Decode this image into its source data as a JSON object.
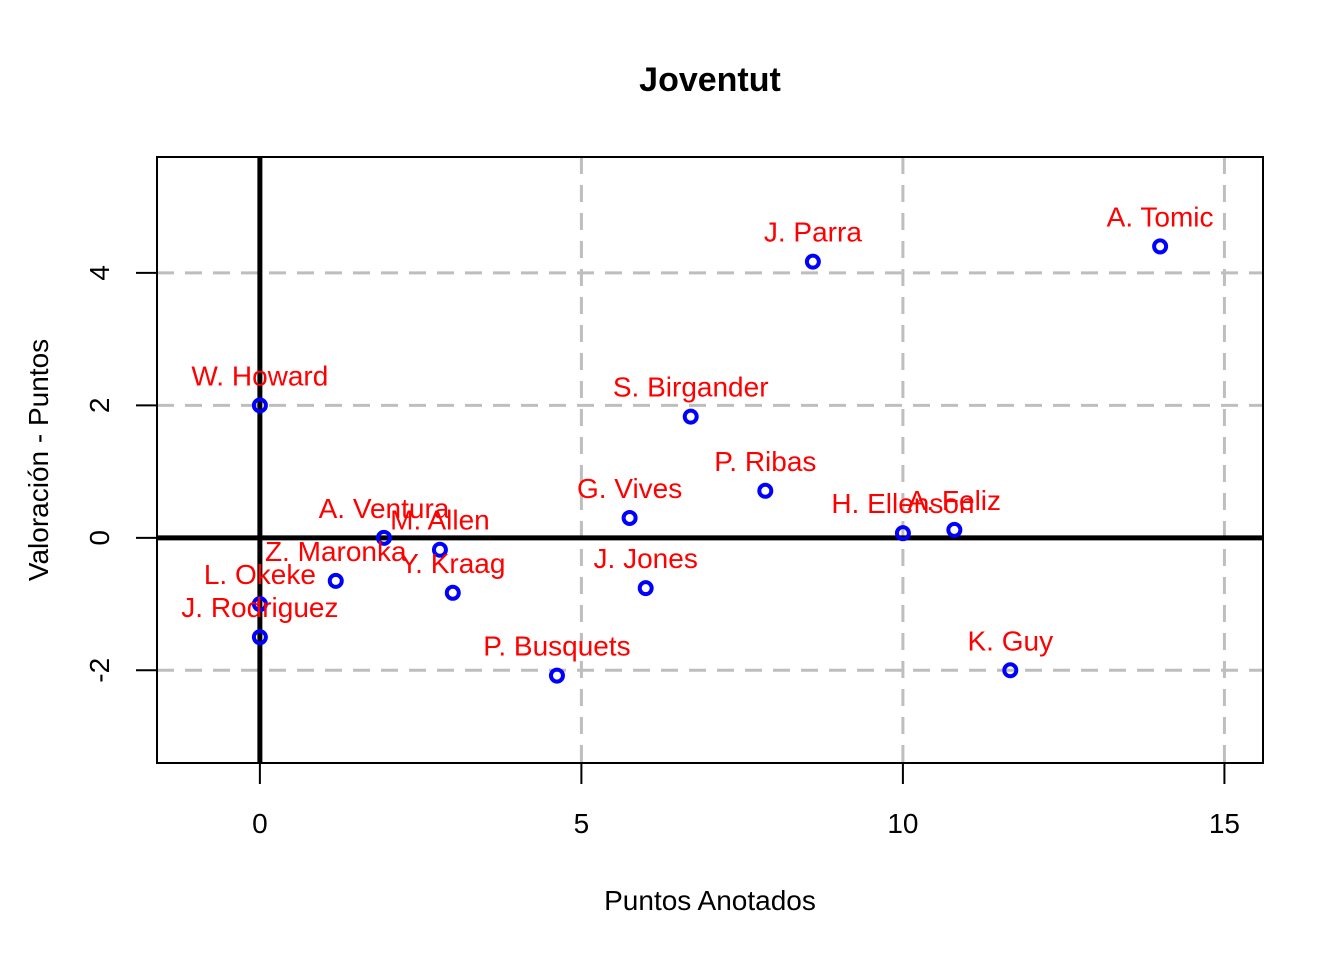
{
  "chart_data": {
    "type": "scatter",
    "title": "Joventut",
    "xlabel": "Puntos Anotados",
    "ylabel": "Valoración - Puntos",
    "xlim": [
      -1.6,
      15.6
    ],
    "ylim": [
      -3.4,
      5.75
    ],
    "x_ticks": [
      0,
      5,
      10,
      15
    ],
    "x_tick_labels": [
      "0",
      "5",
      "10",
      "15"
    ],
    "y_ticks": [
      -2,
      0,
      2,
      4
    ],
    "y_tick_labels": [
      "-2",
      "0",
      "2",
      "4"
    ],
    "grid": true,
    "grid_x": [
      5,
      10,
      15
    ],
    "grid_y": [
      -2,
      2,
      4
    ],
    "reference_lines": {
      "x": 0,
      "y": 0
    },
    "colors": {
      "point": "#0000ff",
      "label": "#ff0000",
      "grid": "#bebebe",
      "axis": "#000000"
    },
    "points": [
      {
        "label": "A. Tomic",
        "x": 14.0,
        "y": 4.4
      },
      {
        "label": "J. Parra",
        "x": 8.6,
        "y": 4.17
      },
      {
        "label": "W. Howard",
        "x": 0.0,
        "y": 2.0
      },
      {
        "label": "S. Birgander",
        "x": 6.7,
        "y": 1.83
      },
      {
        "label": "P. Ribas",
        "x": 7.86,
        "y": 0.71
      },
      {
        "label": "G. Vives",
        "x": 5.75,
        "y": 0.3
      },
      {
        "label": "H. Ellenson",
        "x": 10.0,
        "y": 0.07
      },
      {
        "label": "A. Feliz",
        "x": 10.8,
        "y": 0.12
      },
      {
        "label": "A. Ventura",
        "x": 1.93,
        "y": 0.0
      },
      {
        "label": "M. Allen",
        "x": 2.8,
        "y": -0.18
      },
      {
        "label": "Z. Maronka",
        "x": 1.18,
        "y": -0.65
      },
      {
        "label": "Y. Kraag",
        "x": 3.0,
        "y": -0.83
      },
      {
        "label": "J. Jones",
        "x": 6.0,
        "y": -0.76
      },
      {
        "label": "L. Okeke",
        "x": 0.0,
        "y": -1.0
      },
      {
        "label": "J. Rodriguez",
        "x": 0.0,
        "y": -1.5
      },
      {
        "label": "P. Busquets",
        "x": 4.62,
        "y": -2.08
      },
      {
        "label": "K. Guy",
        "x": 11.67,
        "y": -2.0
      }
    ]
  }
}
